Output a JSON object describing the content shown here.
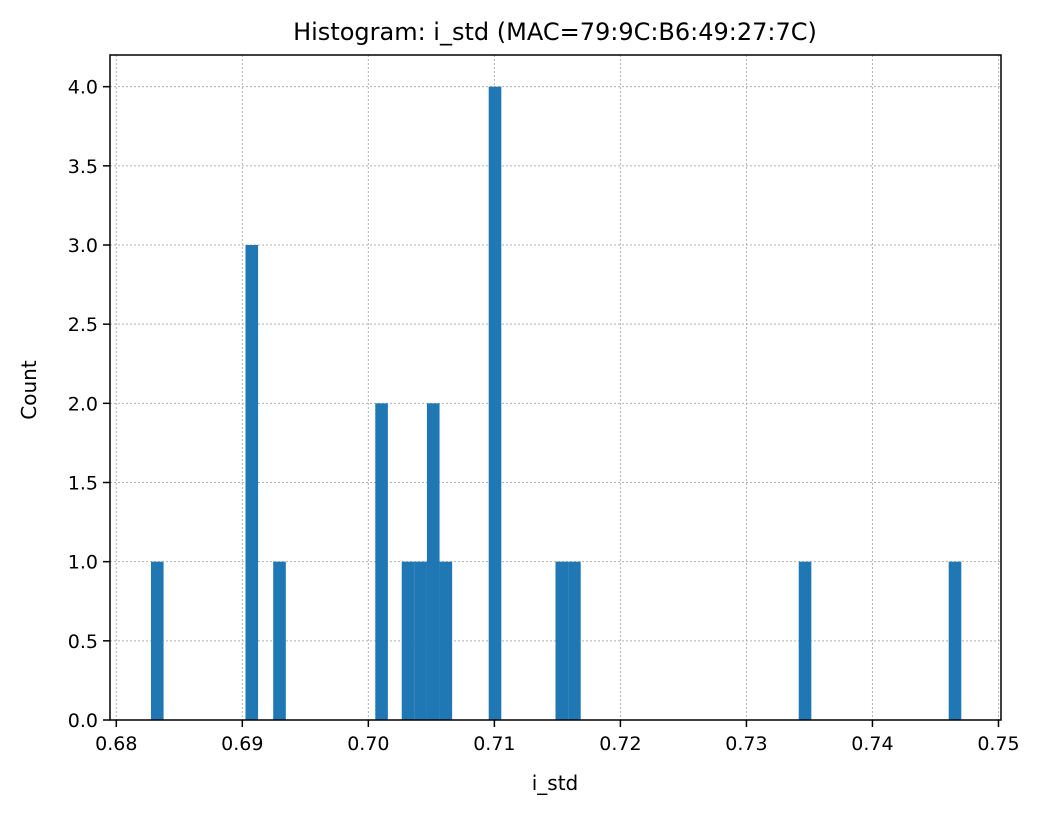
{
  "chart_data": {
    "type": "bar",
    "title": "Histogram: i_std (MAC=79:9C:B6:49:27:7C)",
    "xlabel": "i_std",
    "ylabel": "Count",
    "xlim": [
      0.6795,
      0.7502
    ],
    "ylim": [
      0,
      4.2
    ],
    "x_ticks": [
      0.68,
      0.69,
      0.7,
      0.71,
      0.72,
      0.73,
      0.74,
      0.75
    ],
    "x_tick_labels": [
      "0.68",
      "0.69",
      "0.70",
      "0.71",
      "0.72",
      "0.73",
      "0.74",
      "0.75"
    ],
    "y_ticks": [
      0.0,
      0.5,
      1.0,
      1.5,
      2.0,
      2.5,
      3.0,
      3.5,
      4.0
    ],
    "y_tick_labels": [
      "0.0",
      "0.5",
      "1.0",
      "1.5",
      "2.0",
      "2.5",
      "3.0",
      "3.5",
      "4.0"
    ],
    "grid": true,
    "bar_color": "#1f77b4",
    "bins": [
      {
        "start": 0.68275,
        "end": 0.68375,
        "count": 1
      },
      {
        "start": 0.69025,
        "end": 0.69125,
        "count": 3
      },
      {
        "start": 0.69245,
        "end": 0.69345,
        "count": 1
      },
      {
        "start": 0.70055,
        "end": 0.70155,
        "count": 2
      },
      {
        "start": 0.70265,
        "end": 0.70365,
        "count": 1
      },
      {
        "start": 0.70365,
        "end": 0.70465,
        "count": 1
      },
      {
        "start": 0.70465,
        "end": 0.70565,
        "count": 2
      },
      {
        "start": 0.70565,
        "end": 0.70665,
        "count": 1
      },
      {
        "start": 0.70955,
        "end": 0.71055,
        "count": 4
      },
      {
        "start": 0.71485,
        "end": 0.71585,
        "count": 1
      },
      {
        "start": 0.71585,
        "end": 0.71685,
        "count": 1
      },
      {
        "start": 0.73415,
        "end": 0.73515,
        "count": 1
      },
      {
        "start": 0.74605,
        "end": 0.74705,
        "count": 1
      }
    ]
  }
}
